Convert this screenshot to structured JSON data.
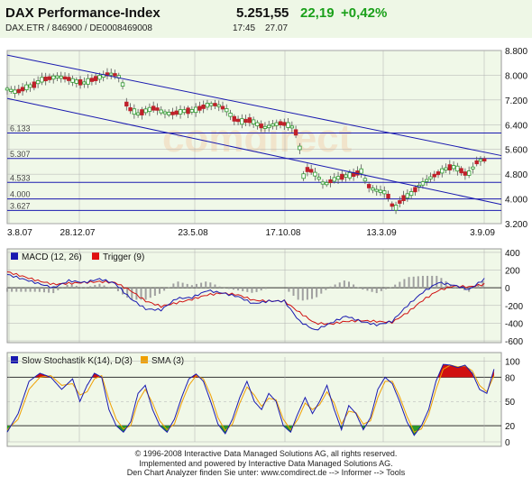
{
  "header": {
    "title": "DAX Performance-Index",
    "price": "5.251,55",
    "change": "22,19",
    "change_pct": "+0,42%",
    "identifiers": "DAX.ETR / 846900 / DE0008469008",
    "time": "17:45",
    "date": "27.07"
  },
  "colors": {
    "background_panel": "#f0f8e8",
    "grid": "#b0b0b0",
    "up": "#2f9a2f",
    "down": "#c0202a",
    "channel": "#1a1ab0",
    "macd": "#1a1ab0",
    "trigger": "#d01010",
    "stoch_k": "#1a1ab0",
    "sma": "#f0a000",
    "overbought": "#d01010",
    "oversold": "#2a9a2a",
    "histogram": "#a0a0a0"
  },
  "watermark": "comdirect",
  "chart_data": [
    {
      "type": "candlestick",
      "x_labels": [
        "3.8.07",
        "28.12.07",
        "23.5.08",
        "17.10.08",
        "13.3.09",
        "3.9.09"
      ],
      "y_ticks": [
        "8.800",
        "8.000",
        "7.200",
        "6.400",
        "5.600",
        "4.800",
        "4.000",
        "3.200"
      ],
      "ylim": [
        3200,
        8800
      ],
      "close_path": [
        [
          0,
          7550
        ],
        [
          6,
          7450
        ],
        [
          12,
          7600
        ],
        [
          18,
          7700
        ],
        [
          22,
          7850
        ],
        [
          27,
          7900
        ],
        [
          33,
          7950
        ],
        [
          39,
          7900
        ],
        [
          44,
          7800
        ],
        [
          50,
          7750
        ],
        [
          55,
          7850
        ],
        [
          61,
          7950
        ],
        [
          66,
          8050
        ],
        [
          72,
          8000
        ],
        [
          75,
          7700
        ],
        [
          77,
          7100
        ],
        [
          80,
          6900
        ],
        [
          85,
          6750
        ],
        [
          90,
          6850
        ],
        [
          96,
          6950
        ],
        [
          101,
          6800
        ],
        [
          106,
          6750
        ],
        [
          111,
          6800
        ],
        [
          116,
          6850
        ],
        [
          121,
          6850
        ],
        [
          126,
          6950
        ],
        [
          131,
          7050
        ],
        [
          136,
          7050
        ],
        [
          142,
          6900
        ],
        [
          147,
          6600
        ],
        [
          152,
          6500
        ],
        [
          158,
          6550
        ],
        [
          163,
          6400
        ],
        [
          168,
          6300
        ],
        [
          173,
          6400
        ],
        [
          178,
          6450
        ],
        [
          182,
          6400
        ],
        [
          186,
          6300
        ],
        [
          189,
          6000
        ],
        [
          191,
          5300
        ],
        [
          193,
          4550
        ],
        [
          195,
          4950
        ],
        [
          198,
          4900
        ],
        [
          202,
          4700
        ],
        [
          206,
          4450
        ],
        [
          211,
          4600
        ],
        [
          216,
          4700
        ],
        [
          221,
          4750
        ],
        [
          226,
          4800
        ],
        [
          230,
          4900
        ],
        [
          234,
          4450
        ],
        [
          238,
          4300
        ],
        [
          242,
          4250
        ],
        [
          246,
          4200
        ],
        [
          248,
          4050
        ],
        [
          250,
          3800
        ],
        [
          252,
          3680
        ],
        [
          255,
          3900
        ],
        [
          258,
          4050
        ],
        [
          262,
          4150
        ],
        [
          266,
          4350
        ],
        [
          270,
          4500
        ],
        [
          274,
          4650
        ],
        [
          279,
          4800
        ],
        [
          284,
          4950
        ],
        [
          289,
          5050
        ],
        [
          294,
          4950
        ],
        [
          298,
          4800
        ],
        [
          301,
          4850
        ],
        [
          304,
          5150
        ],
        [
          307,
          5250
        ],
        [
          310,
          5260
        ]
      ],
      "horizontal_levels": [
        "6.133",
        "5.307",
        "4.533",
        "4.000",
        "3.627"
      ],
      "trend_channel": [
        {
          "from": [
            0,
            8650
          ],
          "to": [
            321,
            5400
          ]
        },
        {
          "from": [
            0,
            7250
          ],
          "to": [
            321,
            3820
          ]
        }
      ]
    },
    {
      "type": "line",
      "series": [
        {
          "name": "MACD (12, 26)",
          "color": "#1a1ab0"
        },
        {
          "name": "Trigger (9)",
          "color": "#d01010"
        }
      ],
      "y_ticks": [
        "400",
        "200",
        "0",
        "-200",
        "-400",
        "-600"
      ],
      "ylim": [
        -600,
        400
      ],
      "macd": [
        [
          0,
          150
        ],
        [
          10,
          100
        ],
        [
          20,
          50
        ],
        [
          30,
          0
        ],
        [
          40,
          80
        ],
        [
          50,
          60
        ],
        [
          60,
          100
        ],
        [
          70,
          50
        ],
        [
          80,
          -120
        ],
        [
          90,
          -240
        ],
        [
          100,
          -250
        ],
        [
          110,
          -120
        ],
        [
          120,
          -110
        ],
        [
          130,
          -30
        ],
        [
          140,
          -60
        ],
        [
          150,
          -100
        ],
        [
          160,
          -180
        ],
        [
          170,
          -150
        ],
        [
          180,
          -150
        ],
        [
          190,
          -380
        ],
        [
          200,
          -480
        ],
        [
          210,
          -400
        ],
        [
          220,
          -320
        ],
        [
          230,
          -380
        ],
        [
          240,
          -420
        ],
        [
          250,
          -380
        ],
        [
          260,
          -200
        ],
        [
          270,
          -50
        ],
        [
          280,
          60
        ],
        [
          290,
          30
        ],
        [
          300,
          -20
        ],
        [
          310,
          100
        ]
      ],
      "trigger": [
        [
          0,
          180
        ],
        [
          10,
          130
        ],
        [
          20,
          80
        ],
        [
          30,
          40
        ],
        [
          40,
          50
        ],
        [
          50,
          60
        ],
        [
          60,
          70
        ],
        [
          70,
          60
        ],
        [
          80,
          -30
        ],
        [
          90,
          -150
        ],
        [
          100,
          -210
        ],
        [
          110,
          -170
        ],
        [
          120,
          -130
        ],
        [
          130,
          -80
        ],
        [
          140,
          -60
        ],
        [
          150,
          -80
        ],
        [
          160,
          -140
        ],
        [
          170,
          -150
        ],
        [
          180,
          -150
        ],
        [
          190,
          -280
        ],
        [
          200,
          -400
        ],
        [
          210,
          -410
        ],
        [
          220,
          -380
        ],
        [
          230,
          -370
        ],
        [
          240,
          -380
        ],
        [
          250,
          -390
        ],
        [
          260,
          -280
        ],
        [
          270,
          -140
        ],
        [
          280,
          -30
        ],
        [
          290,
          20
        ],
        [
          300,
          10
        ],
        [
          310,
          40
        ]
      ]
    },
    {
      "type": "line",
      "series": [
        {
          "name": "Slow Stochastik K(14), D(3)",
          "color": "#1a1ab0"
        },
        {
          "name": "SMA (3)",
          "color": "#f0a000"
        }
      ],
      "y_ticks": [
        "100",
        "80",
        "50",
        "20",
        "0"
      ],
      "ylim": [
        0,
        100
      ],
      "stoch_k": [
        [
          0,
          12
        ],
        [
          6,
          35
        ],
        [
          12,
          75
        ],
        [
          18,
          85
        ],
        [
          24,
          80
        ],
        [
          30,
          65
        ],
        [
          36,
          78
        ],
        [
          40,
          50
        ],
        [
          44,
          70
        ],
        [
          48,
          85
        ],
        [
          52,
          80
        ],
        [
          56,
          40
        ],
        [
          60,
          20
        ],
        [
          64,
          12
        ],
        [
          68,
          25
        ],
        [
          72,
          60
        ],
        [
          76,
          70
        ],
        [
          80,
          40
        ],
        [
          84,
          20
        ],
        [
          88,
          12
        ],
        [
          92,
          28
        ],
        [
          96,
          55
        ],
        [
          100,
          78
        ],
        [
          104,
          84
        ],
        [
          108,
          75
        ],
        [
          112,
          50
        ],
        [
          116,
          22
        ],
        [
          120,
          10
        ],
        [
          124,
          28
        ],
        [
          128,
          55
        ],
        [
          132,
          75
        ],
        [
          136,
          50
        ],
        [
          140,
          40
        ],
        [
          144,
          60
        ],
        [
          148,
          50
        ],
        [
          152,
          20
        ],
        [
          156,
          12
        ],
        [
          160,
          35
        ],
        [
          164,
          55
        ],
        [
          168,
          35
        ],
        [
          172,
          50
        ],
        [
          176,
          70
        ],
        [
          180,
          40
        ],
        [
          184,
          15
        ],
        [
          188,
          45
        ],
        [
          192,
          35
        ],
        [
          196,
          15
        ],
        [
          200,
          30
        ],
        [
          204,
          65
        ],
        [
          208,
          80
        ],
        [
          212,
          72
        ],
        [
          216,
          50
        ],
        [
          220,
          25
        ],
        [
          224,
          8
        ],
        [
          228,
          20
        ],
        [
          232,
          40
        ],
        [
          236,
          75
        ],
        [
          240,
          96
        ],
        [
          244,
          95
        ],
        [
          248,
          92
        ],
        [
          252,
          95
        ],
        [
          256,
          85
        ],
        [
          260,
          65
        ],
        [
          264,
          60
        ],
        [
          268,
          90
        ]
      ],
      "sma": [
        [
          0,
          15
        ],
        [
          6,
          28
        ],
        [
          12,
          65
        ],
        [
          18,
          80
        ],
        [
          24,
          82
        ],
        [
          30,
          70
        ],
        [
          36,
          72
        ],
        [
          40,
          58
        ],
        [
          44,
          62
        ],
        [
          48,
          78
        ],
        [
          52,
          82
        ],
        [
          56,
          52
        ],
        [
          60,
          28
        ],
        [
          64,
          16
        ],
        [
          68,
          20
        ],
        [
          72,
          50
        ],
        [
          76,
          65
        ],
        [
          80,
          48
        ],
        [
          84,
          26
        ],
        [
          88,
          15
        ],
        [
          92,
          22
        ],
        [
          96,
          48
        ],
        [
          100,
          70
        ],
        [
          104,
          82
        ],
        [
          108,
          78
        ],
        [
          112,
          58
        ],
        [
          116,
          30
        ],
        [
          120,
          14
        ],
        [
          124,
          22
        ],
        [
          128,
          48
        ],
        [
          132,
          68
        ],
        [
          136,
          58
        ],
        [
          140,
          44
        ],
        [
          144,
          54
        ],
        [
          148,
          52
        ],
        [
          152,
          28
        ],
        [
          156,
          15
        ],
        [
          160,
          28
        ],
        [
          164,
          48
        ],
        [
          168,
          40
        ],
        [
          172,
          46
        ],
        [
          176,
          62
        ],
        [
          180,
          48
        ],
        [
          184,
          22
        ],
        [
          188,
          38
        ],
        [
          192,
          36
        ],
        [
          196,
          22
        ],
        [
          200,
          26
        ],
        [
          204,
          55
        ],
        [
          208,
          75
        ],
        [
          212,
          75
        ],
        [
          216,
          56
        ],
        [
          220,
          32
        ],
        [
          224,
          12
        ],
        [
          228,
          16
        ],
        [
          232,
          34
        ],
        [
          236,
          65
        ],
        [
          240,
          90
        ],
        [
          244,
          95
        ],
        [
          248,
          93
        ],
        [
          252,
          94
        ],
        [
          256,
          88
        ],
        [
          260,
          70
        ],
        [
          264,
          62
        ],
        [
          268,
          82
        ]
      ]
    }
  ],
  "legends": {
    "macd": "MACD (12, 26)",
    "trigger": "Trigger (9)",
    "stoch": "Slow Stochastik K(14), D(3)",
    "sma": "SMA (3)"
  },
  "footer": {
    "line1": "© 1996-2008 Interactive Data Managed Solutions AG, all rights reserved.",
    "line2": "Implemented and powered by Interactive Data Managed Solutions AG.",
    "line3": "Den Chart Analyzer finden Sie unter: www.comdirect.de --> Informer --> Tools"
  }
}
